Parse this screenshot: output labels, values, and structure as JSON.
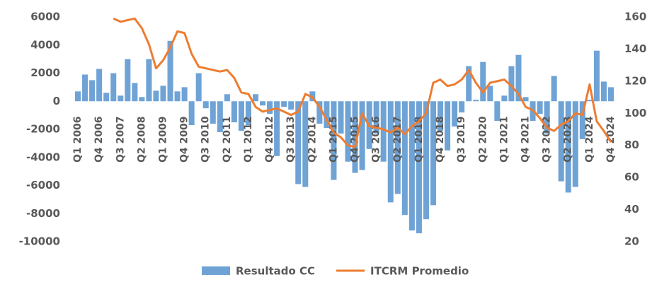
{
  "chart_data": {
    "type": "bar_line",
    "categories": [
      "Q1 2006",
      null,
      null,
      "Q4 2006",
      null,
      null,
      "Q3 2007",
      null,
      null,
      "Q2 2008",
      null,
      null,
      "Q1 2009",
      null,
      null,
      "Q4 2009",
      null,
      null,
      "Q3 2010",
      null,
      null,
      "Q2 2011",
      null,
      null,
      "Q1 2012",
      null,
      null,
      "Q4 2012",
      null,
      null,
      "Q3 2013",
      null,
      null,
      "Q2 2014",
      null,
      null,
      "Q1 2015",
      null,
      null,
      "Q4 2015",
      null,
      null,
      "Q3 2016",
      null,
      null,
      "Q2 2017",
      null,
      null,
      "Q1 2018",
      null,
      null,
      "Q4 2018",
      null,
      null,
      "Q3 2019",
      null,
      null,
      "Q2 2020",
      null,
      null,
      "Q1 2021",
      null,
      null,
      "Q4 2021",
      null,
      null,
      "Q3 2022",
      null,
      null,
      "Q2 2023",
      null,
      null,
      "Q1 2024",
      null,
      null,
      "Q4 2024"
    ],
    "series": [
      {
        "name": "Resultado CC",
        "color": "#6fa3d6",
        "kind": "bar",
        "values": [
          700,
          1900,
          1500,
          2300,
          600,
          2000,
          400,
          3000,
          1300,
          300,
          3000,
          750,
          1100,
          4300,
          700,
          1000,
          -1700,
          2000,
          -500,
          -1600,
          -2200,
          500,
          -1500,
          -2100,
          -1700,
          500,
          -300,
          -900,
          -3900,
          -400,
          -600,
          -5900,
          -6100,
          700,
          -1600,
          -1900,
          -5600,
          -2300,
          -4300,
          -5100,
          -4900,
          -3400,
          -2300,
          -4300,
          -7200,
          -6600,
          -8100,
          -9200,
          -9400,
          -8400,
          -7400,
          -2100,
          -3500,
          -1800,
          -800,
          2500,
          100,
          2800,
          1100,
          -1400,
          400,
          2500,
          3300,
          300,
          -1400,
          -900,
          -2300,
          1800,
          -5700,
          -6500,
          -6100,
          -2700,
          100,
          3600,
          1400,
          1000
        ]
      },
      {
        "name": "ITCRM Promedio",
        "color": "#ed7d31",
        "kind": "line",
        "axis": "y2",
        "values": [
          null,
          null,
          null,
          null,
          null,
          159,
          157,
          158,
          159,
          153,
          143,
          128,
          133,
          141,
          151,
          150,
          137,
          129,
          128,
          127,
          126,
          127,
          122,
          113,
          112,
          104,
          101,
          102,
          103,
          101,
          99,
          101,
          112,
          110,
          104,
          96,
          88,
          85,
          80,
          79,
          100,
          92,
          91,
          90,
          88,
          91,
          87,
          92,
          95,
          100,
          119,
          121,
          117,
          118,
          121,
          127,
          119,
          113,
          119,
          120,
          121,
          117,
          112,
          104,
          102,
          97,
          91,
          89,
          93,
          95,
          100,
          99,
          118,
          95,
          89,
          82
        ]
      }
    ],
    "ylim": [
      -10000,
      6000
    ],
    "yticks": [
      6000,
      4000,
      2000,
      0,
      -2000,
      -4000,
      -6000,
      -8000,
      -10000
    ],
    "y2lim": [
      20,
      160
    ],
    "y2ticks": [
      160,
      140,
      120,
      100,
      80,
      60,
      40,
      20
    ]
  }
}
